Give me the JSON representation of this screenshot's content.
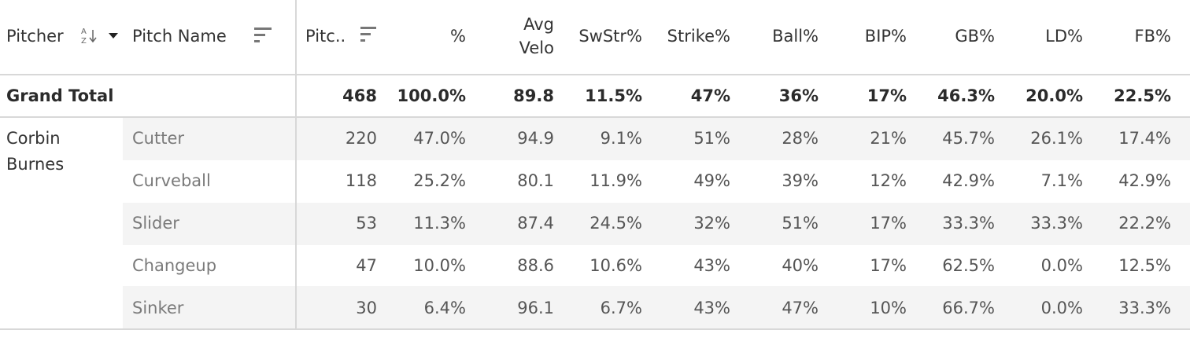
{
  "chart_data": {
    "type": "table",
    "columns": {
      "pitcher": "Pitcher",
      "pitch_name": "Pitch Name",
      "pitches": "Pitc..",
      "pct": "%",
      "avg_velo_line1": "Avg",
      "avg_velo_line2": "Velo",
      "swstr": "SwStr%",
      "strike": "Strike%",
      "ball": "Ball%",
      "bip": "BIP%",
      "gb": "GB%",
      "ld": "LD%",
      "fb": "FB%"
    },
    "grand_total": {
      "label": "Grand Total",
      "values": [
        "468",
        "100.0%",
        "89.8",
        "11.5%",
        "47%",
        "36%",
        "17%",
        "46.3%",
        "20.0%",
        "22.5%"
      ]
    },
    "pitcher": {
      "name_line1": "Corbin",
      "name_line2": "Burnes"
    },
    "rows": [
      {
        "name": "Cutter",
        "values": [
          "220",
          "47.0%",
          "94.9",
          "9.1%",
          "51%",
          "28%",
          "21%",
          "45.7%",
          "26.1%",
          "17.4%"
        ]
      },
      {
        "name": "Curveball",
        "values": [
          "118",
          "25.2%",
          "80.1",
          "11.9%",
          "49%",
          "39%",
          "12%",
          "42.9%",
          "7.1%",
          "42.9%"
        ]
      },
      {
        "name": "Slider",
        "values": [
          "53",
          "11.3%",
          "87.4",
          "24.5%",
          "32%",
          "51%",
          "17%",
          "33.3%",
          "33.3%",
          "22.2%"
        ]
      },
      {
        "name": "Changeup",
        "values": [
          "47",
          "10.0%",
          "88.6",
          "10.6%",
          "43%",
          "40%",
          "17%",
          "62.5%",
          "0.0%",
          "12.5%"
        ]
      },
      {
        "name": "Sinker",
        "values": [
          "30",
          "6.4%",
          "96.1",
          "6.7%",
          "43%",
          "47%",
          "10%",
          "66.7%",
          "0.0%",
          "33.3%"
        ]
      }
    ]
  },
  "icons": {
    "pitcher_sort": "sort-alpha-icon",
    "pitcher_menu": "caret-down-icon",
    "pitch_name_sort": "sort-desc-icon",
    "pitches_sort": "sort-desc-icon"
  },
  "colors": {
    "row_band": "#f4f4f4",
    "grid_line": "#d8d8d8",
    "header_text": "#333333",
    "name_text": "#7a7a7a"
  }
}
